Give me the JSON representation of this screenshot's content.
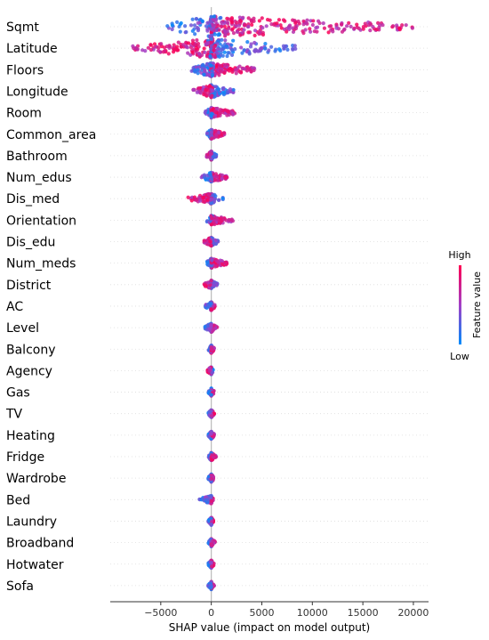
{
  "chart_data": {
    "type": "scatter",
    "subtype": "shap-beeswarm",
    "xlabel": "SHAP value (impact on model output)",
    "xlim": [
      -10000,
      21500
    ],
    "xticks": [
      -5000,
      0,
      5000,
      10000,
      15000,
      20000
    ],
    "colorbar": {
      "label": "Feature value",
      "high_label": "High",
      "low_label": "Low",
      "high_color": "#ff0052",
      "low_color": "#008bfb"
    },
    "features": [
      {
        "name": "Sqmt",
        "neg": -4500,
        "pos": 20000,
        "spread": 1.0,
        "sign": 1
      },
      {
        "name": "Latitude",
        "neg": -8000,
        "pos": 8500,
        "spread": 0.85,
        "sign": -1
      },
      {
        "name": "Floors",
        "neg": -2000,
        "pos": 4300,
        "spread": 0.55,
        "sign": 1
      },
      {
        "name": "Longitude",
        "neg": -1800,
        "pos": 2200,
        "spread": 0.45,
        "sign": -1
      },
      {
        "name": "Room",
        "neg": -700,
        "pos": 2500,
        "spread": 0.3,
        "sign": 1
      },
      {
        "name": "Common_area",
        "neg": -500,
        "pos": 1300,
        "spread": 0.25,
        "sign": 1
      },
      {
        "name": "Bathroom",
        "neg": -500,
        "pos": 500,
        "spread": 0.2,
        "sign": -1
      },
      {
        "name": "Num_edus",
        "neg": -1000,
        "pos": 1700,
        "spread": 0.25,
        "sign": 1
      },
      {
        "name": "Dis_med",
        "neg": -2500,
        "pos": 1200,
        "spread": 0.3,
        "sign": -1
      },
      {
        "name": "Orientation",
        "neg": -500,
        "pos": 2200,
        "spread": 0.25,
        "sign": 1
      },
      {
        "name": "Dis_edu",
        "neg": -700,
        "pos": 700,
        "spread": 0.2,
        "sign": -1
      },
      {
        "name": "Num_meds",
        "neg": -500,
        "pos": 1600,
        "spread": 0.25,
        "sign": 1
      },
      {
        "name": "District",
        "neg": -700,
        "pos": 600,
        "spread": 0.2,
        "sign": -1
      },
      {
        "name": "AC",
        "neg": -600,
        "pos": 400,
        "spread": 0.18,
        "sign": 1
      },
      {
        "name": "Level",
        "neg": -700,
        "pos": 600,
        "spread": 0.2,
        "sign": 1
      },
      {
        "name": "Balcony",
        "neg": -300,
        "pos": 300,
        "spread": 0.15,
        "sign": 1
      },
      {
        "name": "Agency",
        "neg": -400,
        "pos": 200,
        "spread": 0.15,
        "sign": -1
      },
      {
        "name": "Gas",
        "neg": -300,
        "pos": 300,
        "spread": 0.15,
        "sign": 1
      },
      {
        "name": "TV",
        "neg": -300,
        "pos": 300,
        "spread": 0.15,
        "sign": 1
      },
      {
        "name": "Heating",
        "neg": -300,
        "pos": 300,
        "spread": 0.15,
        "sign": 1
      },
      {
        "name": "Fridge",
        "neg": -300,
        "pos": 500,
        "spread": 0.15,
        "sign": 1
      },
      {
        "name": "Wardrobe",
        "neg": -300,
        "pos": 300,
        "spread": 0.15,
        "sign": 1
      },
      {
        "name": "Bed",
        "neg": -1200,
        "pos": 200,
        "spread": 0.15,
        "sign": 1
      },
      {
        "name": "Laundry",
        "neg": -300,
        "pos": 200,
        "spread": 0.15,
        "sign": 1
      },
      {
        "name": "Broadband",
        "neg": -300,
        "pos": 400,
        "spread": 0.15,
        "sign": 1
      },
      {
        "name": "Hotwater",
        "neg": -300,
        "pos": 300,
        "spread": 0.15,
        "sign": 1
      },
      {
        "name": "Sofa",
        "neg": -300,
        "pos": 300,
        "spread": 0.15,
        "sign": 1
      }
    ]
  }
}
